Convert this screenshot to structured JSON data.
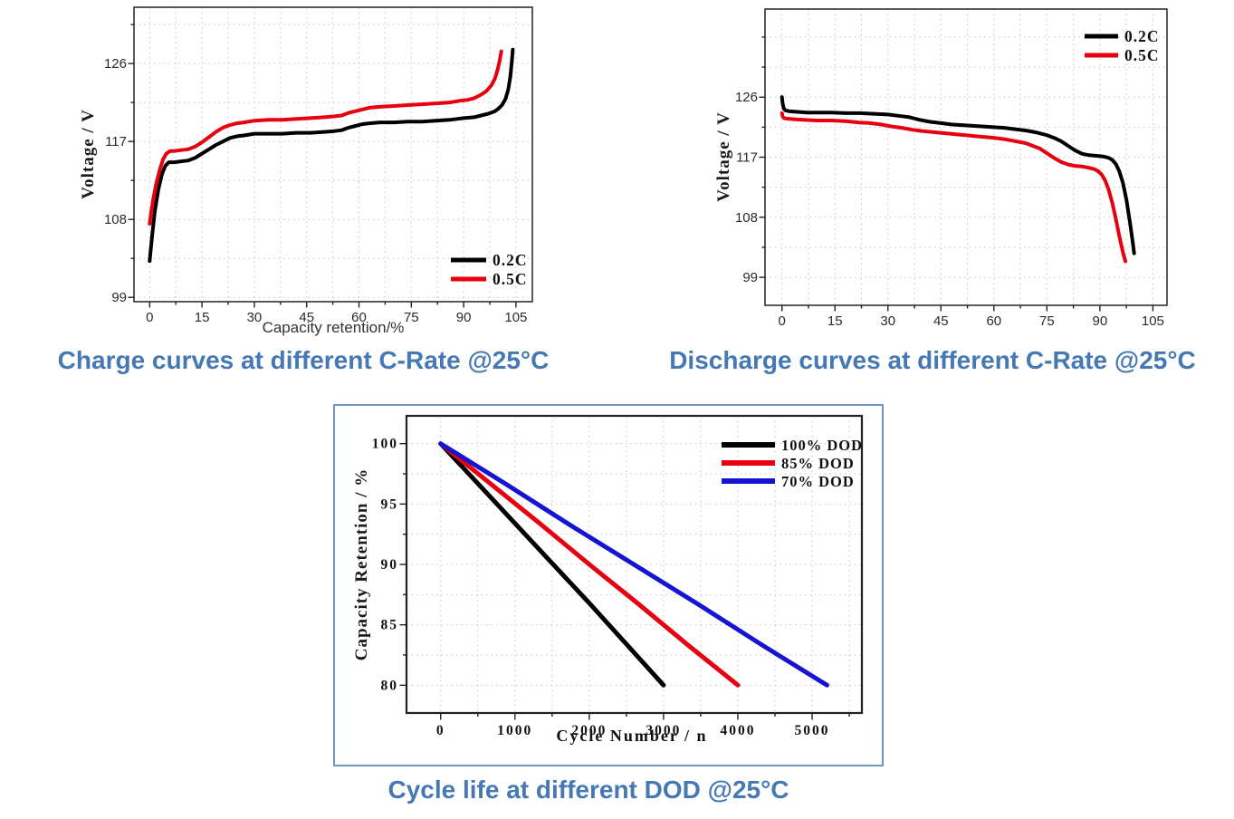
{
  "colors": {
    "title_blue": "#4678b4",
    "series_black": "#000000",
    "series_red": "#e60010",
    "series_blue": "#1414d2",
    "box_border": "#7396c0",
    "grid": "#c4c4c4",
    "frame": "#222222"
  },
  "chart_data": [
    {
      "id": "charge",
      "type": "line",
      "title": "Charge curves at different C-Rate @25°C",
      "xlabel": "Capacity retention/%",
      "ylabel": "Voltage / V",
      "xlim": [
        -4.5,
        109.7
      ],
      "ylim": [
        98.5,
        132.5
      ],
      "xticks": [
        0,
        15,
        30,
        45,
        60,
        75,
        90,
        105
      ],
      "yticks": [
        99,
        108,
        117,
        126
      ],
      "x_minor": 7.5,
      "y_minor": 4.5,
      "grid": true,
      "legend_position": "bottom-right",
      "legend": {
        "items": [
          {
            "label": "0.2C",
            "color": "#000000"
          },
          {
            "label": "0.5C",
            "color": "#e60010"
          }
        ]
      },
      "series": [
        {
          "name": "0.2C",
          "color": "#000000",
          "points": [
            [
              0,
              103.2
            ],
            [
              0.3,
              104.5
            ],
            [
              0.8,
              106.5
            ],
            [
              1.5,
              109.0
            ],
            [
              2.5,
              111.5
            ],
            [
              3.5,
              113.2
            ],
            [
              4.5,
              114.2
            ],
            [
              5.5,
              114.6
            ],
            [
              7,
              114.6
            ],
            [
              9,
              114.7
            ],
            [
              11,
              114.8
            ],
            [
              13,
              115.1
            ],
            [
              15,
              115.6
            ],
            [
              17,
              116.1
            ],
            [
              19,
              116.6
            ],
            [
              21,
              117.0
            ],
            [
              23,
              117.4
            ],
            [
              25,
              117.6
            ],
            [
              27,
              117.7
            ],
            [
              30,
              117.9
            ],
            [
              34,
              117.9
            ],
            [
              38,
              117.9
            ],
            [
              42,
              118.0
            ],
            [
              46,
              118.0
            ],
            [
              50,
              118.1
            ],
            [
              53,
              118.2
            ],
            [
              55,
              118.3
            ],
            [
              57,
              118.6
            ],
            [
              59,
              118.8
            ],
            [
              61,
              119.0
            ],
            [
              63,
              119.1
            ],
            [
              66,
              119.2
            ],
            [
              70,
              119.2
            ],
            [
              74,
              119.3
            ],
            [
              78,
              119.3
            ],
            [
              82,
              119.4
            ],
            [
              86,
              119.5
            ],
            [
              90,
              119.7
            ],
            [
              93,
              119.8
            ],
            [
              95,
              120.0
            ],
            [
              97,
              120.2
            ],
            [
              99,
              120.5
            ],
            [
              100,
              120.8
            ],
            [
              101,
              121.2
            ],
            [
              102,
              121.9
            ],
            [
              102.8,
              123.0
            ],
            [
              103.4,
              124.5
            ],
            [
              103.8,
              126.2
            ],
            [
              104.1,
              127.6
            ]
          ]
        },
        {
          "name": "0.5C",
          "color": "#e60010",
          "points": [
            [
              0,
              107.5
            ],
            [
              0.4,
              108.8
            ],
            [
              1,
              110.3
            ],
            [
              1.8,
              112.0
            ],
            [
              2.8,
              113.6
            ],
            [
              3.8,
              114.9
            ],
            [
              4.8,
              115.6
            ],
            [
              5.8,
              115.9
            ],
            [
              7,
              115.9
            ],
            [
              9,
              116.0
            ],
            [
              11,
              116.1
            ],
            [
              13,
              116.4
            ],
            [
              15,
              116.9
            ],
            [
              17,
              117.5
            ],
            [
              19,
              118.1
            ],
            [
              21,
              118.6
            ],
            [
              23,
              118.9
            ],
            [
              25,
              119.1
            ],
            [
              27,
              119.2
            ],
            [
              30,
              119.4
            ],
            [
              34,
              119.5
            ],
            [
              38,
              119.5
            ],
            [
              42,
              119.6
            ],
            [
              46,
              119.7
            ],
            [
              50,
              119.8
            ],
            [
              53,
              119.9
            ],
            [
              55,
              120.0
            ],
            [
              57,
              120.3
            ],
            [
              59,
              120.5
            ],
            [
              61,
              120.7
            ],
            [
              63,
              120.9
            ],
            [
              66,
              121.0
            ],
            [
              70,
              121.1
            ],
            [
              74,
              121.2
            ],
            [
              78,
              121.3
            ],
            [
              82,
              121.4
            ],
            [
              86,
              121.5
            ],
            [
              89,
              121.7
            ],
            [
              91,
              121.8
            ],
            [
              93,
              122.0
            ],
            [
              95,
              122.4
            ],
            [
              96.5,
              122.8
            ],
            [
              98,
              123.5
            ],
            [
              99,
              124.3
            ],
            [
              99.8,
              125.4
            ],
            [
              100.4,
              126.5
            ],
            [
              100.8,
              127.4
            ]
          ]
        }
      ]
    },
    {
      "id": "discharge",
      "type": "line",
      "title": "Discharge curves at different C-Rate @25°C",
      "xlabel": "",
      "ylabel": "Voltage / V",
      "xlim": [
        -4.8,
        109
      ],
      "ylim": [
        94.8,
        139.2
      ],
      "xticks": [
        0,
        15,
        30,
        45,
        60,
        75,
        90,
        105
      ],
      "yticks": [
        99,
        108,
        117,
        126
      ],
      "x_minor": 7.5,
      "y_minor": 4.5,
      "grid": true,
      "legend_position": "top-right",
      "legend": {
        "items": [
          {
            "label": "0.2C",
            "color": "#000000"
          },
          {
            "label": "0.5C",
            "color": "#e60010"
          }
        ]
      },
      "series": [
        {
          "name": "0.2C",
          "color": "#000000",
          "points": [
            [
              0,
              126.0
            ],
            [
              0.2,
              125.0
            ],
            [
              0.5,
              124.3
            ],
            [
              1,
              124.0
            ],
            [
              2,
              123.9
            ],
            [
              4,
              123.8
            ],
            [
              7,
              123.7
            ],
            [
              10,
              123.7
            ],
            [
              14,
              123.7
            ],
            [
              18,
              123.6
            ],
            [
              22,
              123.6
            ],
            [
              26,
              123.5
            ],
            [
              30,
              123.4
            ],
            [
              33,
              123.2
            ],
            [
              36,
              123.0
            ],
            [
              39,
              122.6
            ],
            [
              42,
              122.3
            ],
            [
              45,
              122.1
            ],
            [
              48,
              121.9
            ],
            [
              51,
              121.8
            ],
            [
              54,
              121.7
            ],
            [
              57,
              121.6
            ],
            [
              60,
              121.5
            ],
            [
              63,
              121.4
            ],
            [
              66,
              121.2
            ],
            [
              69,
              121.0
            ],
            [
              72,
              120.7
            ],
            [
              75,
              120.3
            ],
            [
              77,
              119.9
            ],
            [
              79,
              119.4
            ],
            [
              81,
              118.7
            ],
            [
              83,
              118.0
            ],
            [
              85,
              117.5
            ],
            [
              87,
              117.3
            ],
            [
              89,
              117.2
            ],
            [
              91,
              117.1
            ],
            [
              92.5,
              116.9
            ],
            [
              93.5,
              116.6
            ],
            [
              94.5,
              116.0
            ],
            [
              95.5,
              114.9
            ],
            [
              96.5,
              113.2
            ],
            [
              97.5,
              110.7
            ],
            [
              98.5,
              107.3
            ],
            [
              99.3,
              104.2
            ],
            [
              99.7,
              102.6
            ]
          ]
        },
        {
          "name": "0.5C",
          "color": "#e60010",
          "points": [
            [
              0,
              123.6
            ],
            [
              0.2,
              123.1
            ],
            [
              0.5,
              122.9
            ],
            [
              1,
              122.8
            ],
            [
              3,
              122.7
            ],
            [
              6,
              122.6
            ],
            [
              10,
              122.5
            ],
            [
              14,
              122.5
            ],
            [
              18,
              122.4
            ],
            [
              22,
              122.2
            ],
            [
              25,
              122.1
            ],
            [
              28,
              121.9
            ],
            [
              31,
              121.6
            ],
            [
              34,
              121.4
            ],
            [
              37,
              121.1
            ],
            [
              40,
              120.9
            ],
            [
              44,
              120.7
            ],
            [
              48,
              120.5
            ],
            [
              52,
              120.3
            ],
            [
              56,
              120.1
            ],
            [
              60,
              119.9
            ],
            [
              63,
              119.7
            ],
            [
              66,
              119.4
            ],
            [
              69,
              119.1
            ],
            [
              71,
              118.7
            ],
            [
              73,
              118.3
            ],
            [
              75,
              117.6
            ],
            [
              77,
              116.9
            ],
            [
              79,
              116.3
            ],
            [
              81,
              115.9
            ],
            [
              83,
              115.7
            ],
            [
              85,
              115.6
            ],
            [
              87,
              115.4
            ],
            [
              88.5,
              115.2
            ],
            [
              89.5,
              114.9
            ],
            [
              90.5,
              114.4
            ],
            [
              91.5,
              113.5
            ],
            [
              92.5,
              112.1
            ],
            [
              93.5,
              110.2
            ],
            [
              94.5,
              107.8
            ],
            [
              95.5,
              105.2
            ],
            [
              96.5,
              102.8
            ],
            [
              97.2,
              101.4
            ]
          ]
        }
      ]
    },
    {
      "id": "cycle",
      "type": "line",
      "title": "Cycle life at different DOD @25°C",
      "xlabel": "Cycle Number / n",
      "ylabel": "Capacity Retention / %",
      "xlim": [
        -460,
        5670
      ],
      "ylim": [
        77.7,
        102.3
      ],
      "xticks": [
        0,
        1000,
        2000,
        3000,
        4000,
        5000
      ],
      "yticks": [
        80,
        85,
        90,
        95,
        100
      ],
      "x_minor": 500,
      "y_minor": 2.5,
      "grid": true,
      "legend_position": "top-right",
      "legend": {
        "items": [
          {
            "label": "100% DOD",
            "color": "#000000"
          },
          {
            "label": "85% DOD",
            "color": "#e60010"
          },
          {
            "label": "70% DOD",
            "color": "#1414d2"
          }
        ]
      },
      "series": [
        {
          "name": "100% DOD",
          "color": "#000000",
          "points": [
            [
              0,
              100
            ],
            [
              500,
              96.7
            ],
            [
              1000,
              93.4
            ],
            [
              1500,
              90.1
            ],
            [
              2000,
              86.8
            ],
            [
              2500,
              83.4
            ],
            [
              3000,
              80
            ]
          ]
        },
        {
          "name": "85% DOD",
          "color": "#e60010",
          "points": [
            [
              0,
              100
            ],
            [
              667,
              96.7
            ],
            [
              1333,
              93.4
            ],
            [
              2000,
              90
            ],
            [
              2667,
              86.7
            ],
            [
              3333,
              83.3
            ],
            [
              4000,
              80
            ]
          ]
        },
        {
          "name": "70% DOD",
          "color": "#1414d2",
          "points": [
            [
              0,
              100
            ],
            [
              867,
              96.7
            ],
            [
              1733,
              93.3
            ],
            [
              2600,
              90
            ],
            [
              3467,
              86.7
            ],
            [
              4333,
              83.3
            ],
            [
              5200,
              80
            ]
          ]
        }
      ]
    }
  ]
}
